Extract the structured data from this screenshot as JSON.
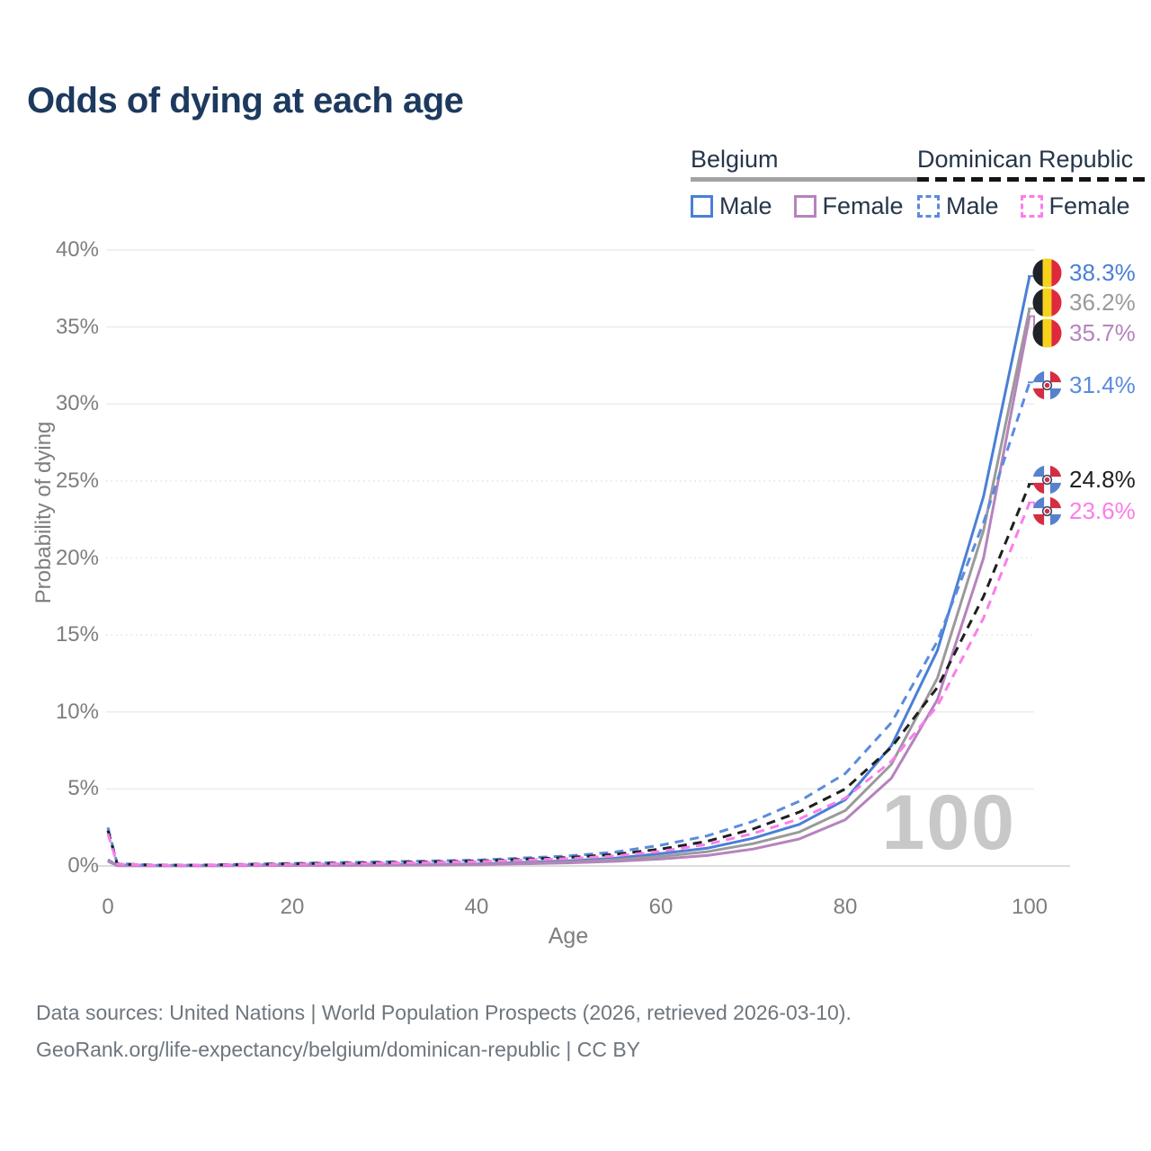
{
  "title": "Odds of dying at each age",
  "legend": {
    "groups": [
      {
        "label": "Belgium",
        "line_style": "solid",
        "underline_color": "#a2a2a2",
        "items": [
          {
            "label": "Male",
            "color": "#4a7fd6",
            "dashed": false
          },
          {
            "label": "Female",
            "color": "#b583bd",
            "dashed": false
          }
        ]
      },
      {
        "label": "Dominican Republic",
        "line_style": "dashed",
        "underline_color": "#141414",
        "items": [
          {
            "label": "Male",
            "color": "#5b8bdd",
            "dashed": true
          },
          {
            "label": "Female",
            "color": "#fb7deb",
            "dashed": true
          }
        ]
      }
    ]
  },
  "chart_data": {
    "type": "line",
    "title": "Odds of dying at each age",
    "xlabel": "Age",
    "ylabel": "Probability of dying",
    "xlim": [
      0,
      100
    ],
    "ylim": [
      0,
      40
    ],
    "x_ticks": [
      0,
      20,
      40,
      60,
      80,
      100
    ],
    "y_ticks": [
      "0%",
      "5%",
      "10%",
      "15%",
      "20%",
      "25%",
      "30%",
      "35%",
      "40%"
    ],
    "grid": "horizontal only, light gray; 15-25% rendered dotted",
    "legend_position": "top-right",
    "watermark": "100",
    "ages": [
      0,
      1,
      5,
      10,
      20,
      30,
      40,
      50,
      55,
      60,
      65,
      70,
      75,
      80,
      85,
      90,
      95,
      100
    ],
    "series": [
      {
        "name": "Belgium Male",
        "country": "Belgium",
        "sex": "Male",
        "color": "#4a7fd6",
        "dashed": false,
        "flag": "be",
        "end_label": "38.3%",
        "values": [
          0.4,
          0.03,
          0.01,
          0.01,
          0.06,
          0.08,
          0.13,
          0.33,
          0.5,
          0.8,
          1.15,
          1.8,
          2.7,
          4.3,
          7.8,
          14.0,
          24.0,
          38.3
        ]
      },
      {
        "name": "Belgium Both sexes",
        "country": "Belgium",
        "sex": "Both",
        "color": "#9a9a9a",
        "dashed": false,
        "flag": "be",
        "end_label": "36.2%",
        "values": [
          0.35,
          0.03,
          0.01,
          0.01,
          0.04,
          0.06,
          0.1,
          0.26,
          0.4,
          0.62,
          0.92,
          1.45,
          2.2,
          3.6,
          6.6,
          12.2,
          21.8,
          36.2
        ]
      },
      {
        "name": "Belgium Female",
        "country": "Belgium",
        "sex": "Female",
        "color": "#b583bd",
        "dashed": false,
        "flag": "be",
        "end_label": "35.7%",
        "values": [
          0.3,
          0.02,
          0.01,
          0.01,
          0.03,
          0.04,
          0.08,
          0.2,
          0.3,
          0.45,
          0.68,
          1.1,
          1.75,
          3.0,
          5.7,
          10.8,
          20.0,
          35.7
        ]
      },
      {
        "name": "Dominican Republic Male",
        "country": "Dominican Republic",
        "sex": "Male",
        "color": "#5b8bdd",
        "dashed": true,
        "flag": "do",
        "end_label": "31.4%",
        "values": [
          2.5,
          0.15,
          0.05,
          0.06,
          0.17,
          0.27,
          0.38,
          0.65,
          0.9,
          1.35,
          1.95,
          2.9,
          4.2,
          6.0,
          9.3,
          14.6,
          22.3,
          31.4
        ]
      },
      {
        "name": "Dominican Republic Both sexes",
        "country": "Dominican Republic",
        "sex": "Both",
        "color": "#1f1f1f",
        "dashed": true,
        "flag": "do",
        "end_label": "24.8%",
        "values": [
          2.3,
          0.13,
          0.05,
          0.05,
          0.14,
          0.22,
          0.32,
          0.55,
          0.75,
          1.1,
          1.6,
          2.4,
          3.5,
          5.0,
          7.7,
          11.6,
          17.5,
          24.8
        ]
      },
      {
        "name": "Dominican Republic Female",
        "country": "Dominican Republic",
        "sex": "Female",
        "color": "#fb7deb",
        "dashed": true,
        "flag": "do",
        "end_label": "23.6%",
        "values": [
          2.1,
          0.12,
          0.04,
          0.05,
          0.11,
          0.18,
          0.28,
          0.48,
          0.65,
          0.95,
          1.4,
          2.1,
          3.05,
          4.4,
          6.8,
          10.4,
          16.1,
          23.6
        ]
      }
    ]
  },
  "footer": {
    "line1": "Data sources: United Nations | World Population Prospects (2026, retrieved 2026-03-10).",
    "line2": "GeoRank.org/life-expectancy/belgium/dominican-republic | CC BY"
  }
}
